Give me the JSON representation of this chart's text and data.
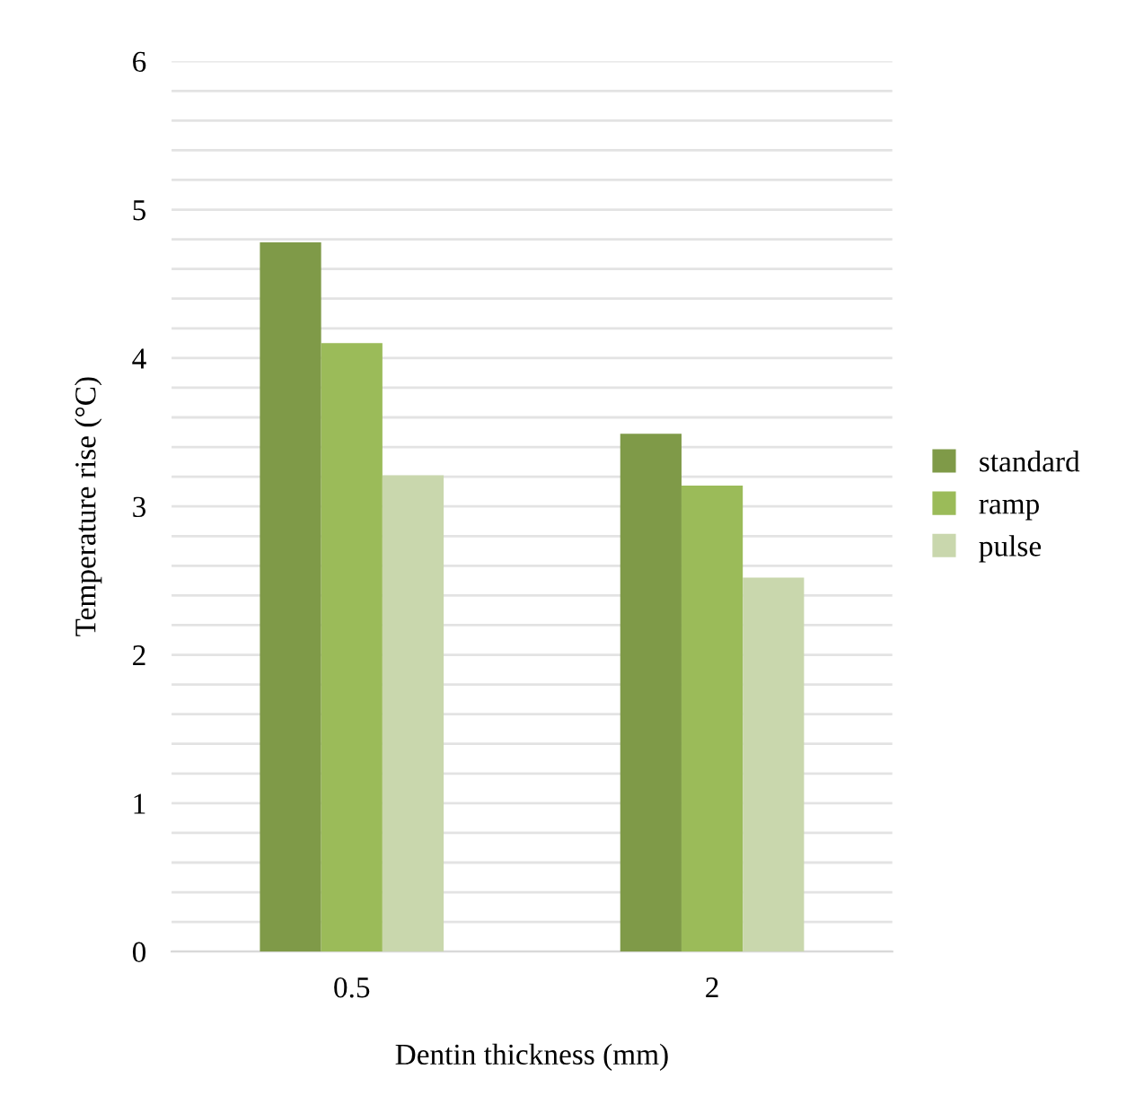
{
  "chart_data": {
    "type": "bar",
    "xlabel": "Dentin thickness (mm)",
    "ylabel": "Temperature rise (°C)",
    "categories": [
      "0.5",
      "2"
    ],
    "series": [
      {
        "name": "standard",
        "color": "#7f9a48",
        "values": [
          4.78,
          3.49
        ]
      },
      {
        "name": "ramp",
        "color": "#9bbb59",
        "values": [
          4.1,
          3.14
        ]
      },
      {
        "name": "pulse",
        "color": "#c9d7ad",
        "values": [
          3.21,
          2.52
        ]
      }
    ],
    "ylim": [
      0,
      6
    ],
    "yticks": [
      0,
      {
        "value": 0.2,
        "label": null
      },
      {
        "value": 0.4,
        "label": null
      },
      {
        "value": 0.6,
        "label": null
      },
      {
        "value": 0.8,
        "label": null
      },
      1,
      {
        "value": 1.2,
        "label": null
      },
      {
        "value": 1.4,
        "label": null
      },
      {
        "value": 1.6,
        "label": null
      },
      {
        "value": 1.8,
        "label": null
      },
      2,
      {
        "value": 2.2,
        "label": null
      },
      {
        "value": 2.4,
        "label": null
      },
      {
        "value": 2.6,
        "label": null
      },
      {
        "value": 2.8,
        "label": null
      },
      3,
      {
        "value": 3.2,
        "label": null
      },
      {
        "value": 3.4,
        "label": null
      },
      {
        "value": 3.6,
        "label": null
      },
      {
        "value": 3.8,
        "label": null
      },
      4,
      {
        "value": 4.2,
        "label": null
      },
      {
        "value": 4.4,
        "label": null
      },
      {
        "value": 4.6,
        "label": null
      },
      {
        "value": 4.8,
        "label": null
      },
      5,
      {
        "value": 5.2,
        "label": null
      },
      {
        "value": 5.4,
        "label": null
      },
      {
        "value": 5.6,
        "label": null
      },
      {
        "value": 5.8,
        "label": null
      },
      6
    ],
    "grid": "y",
    "legend": "right"
  }
}
